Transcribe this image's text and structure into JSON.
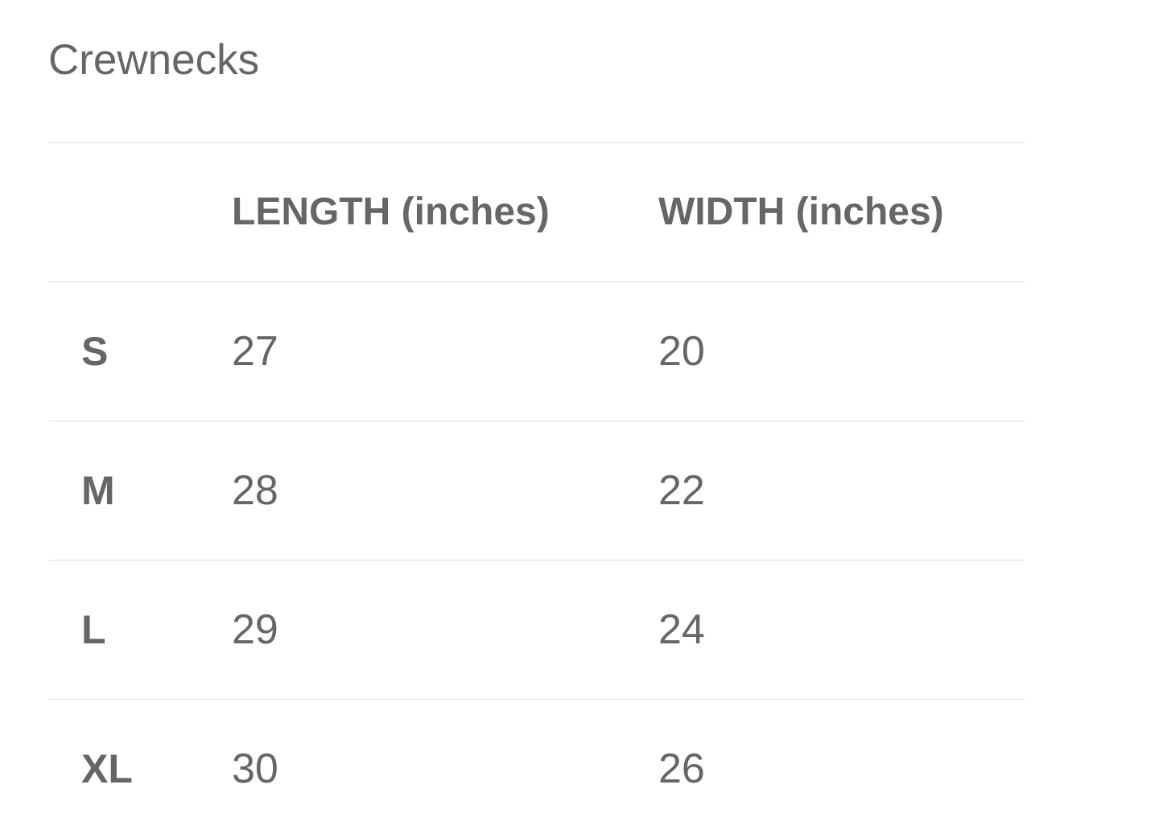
{
  "title": "Crewnecks",
  "table": {
    "headers": [
      "",
      "LENGTH (inches)",
      "WIDTH (inches)"
    ],
    "rows": [
      {
        "size": "S",
        "length": "27",
        "width": "20"
      },
      {
        "size": "M",
        "length": "28",
        "width": "22"
      },
      {
        "size": "L",
        "length": "29",
        "width": "24"
      },
      {
        "size": "XL",
        "length": "30",
        "width": "26"
      }
    ]
  }
}
